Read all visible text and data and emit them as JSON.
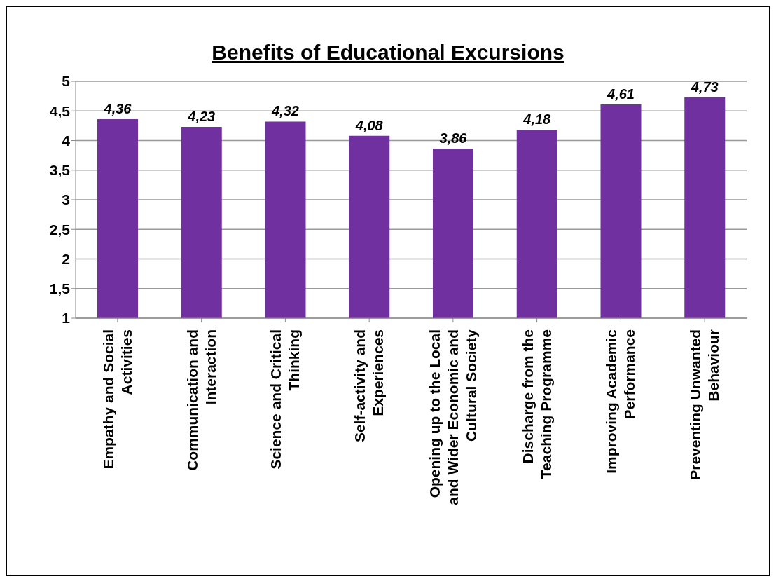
{
  "chart_data": {
    "type": "bar",
    "title": "Benefits of Educational Excursions",
    "categories": [
      "Empathy and Social Activities",
      "Communication and Interaction",
      "Science and Critical Thinking",
      "Self-activity and Experiences",
      "Opening up to the Local and Wider Economic and Cultural Society",
      "Discharge from the Teaching Programme",
      "Improving Academic Performance",
      "Preventing Unwanted Behaviour"
    ],
    "values": [
      4.36,
      4.23,
      4.32,
      4.08,
      3.86,
      4.18,
      4.61,
      4.73
    ],
    "value_labels": [
      "4,36",
      "4,23",
      "4,32",
      "4,08",
      "3,86",
      "4,18",
      "4,61",
      "4,73"
    ],
    "color": "#7030a0",
    "ylim": [
      1,
      5
    ],
    "yticks": [
      1,
      {
        "value": 1.5,
        "label": "1,5"
      },
      2,
      {
        "value": 2.5,
        "label": "2,5"
      },
      3,
      {
        "value": 3.5,
        "label": "3,5"
      },
      4,
      {
        "value": 4.5,
        "label": "4,5"
      },
      5
    ],
    "grid": "y",
    "legend": false
  }
}
